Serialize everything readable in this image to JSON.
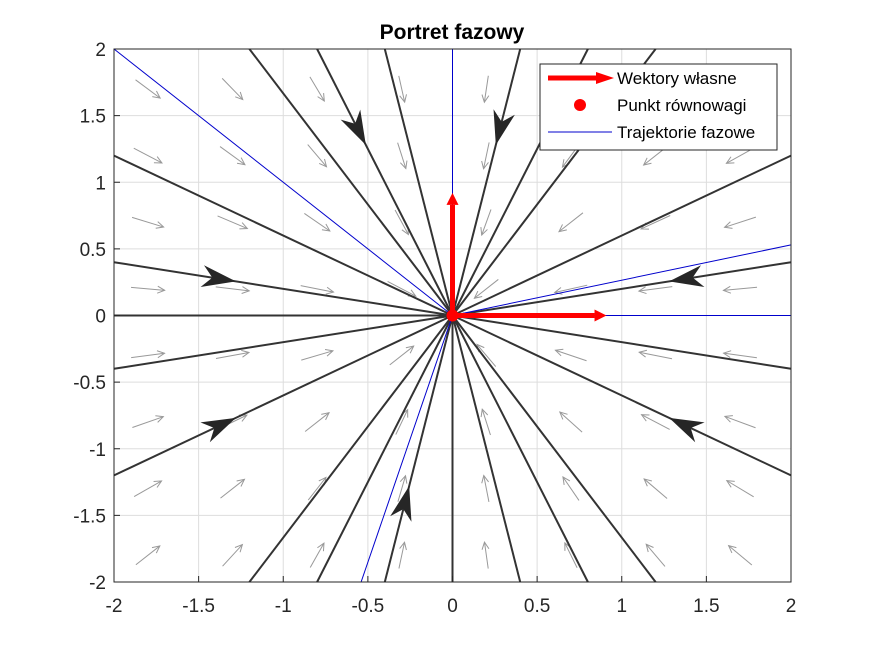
{
  "chart_data": {
    "type": "line",
    "title": "Portret fazowy",
    "xlabel": "",
    "ylabel": "",
    "xlim": [
      -2,
      2
    ],
    "ylim": [
      -2,
      2
    ],
    "xticks": [
      -2,
      -1.5,
      -1,
      -0.5,
      0,
      0.5,
      1,
      1.5,
      2
    ],
    "yticks": [
      -2,
      -1.5,
      -1,
      -0.5,
      0,
      0.5,
      1,
      1.5,
      2
    ],
    "xtick_labels": [
      "-2",
      "-1.5",
      "-1",
      "-0.5",
      "0",
      "0.5",
      "1",
      "1.5",
      "2"
    ],
    "ytick_labels": [
      "-2",
      "-1.5",
      "-1",
      "-0.5",
      "0",
      "0.5",
      "1",
      "1.5",
      "2"
    ],
    "grid": true,
    "legend_position": "top-right",
    "colors": {
      "eigenvector": "#ff0000",
      "equilibrium": "#ff0000",
      "trajectory_highlight": "#0000cc",
      "trajectory": "#333333",
      "quiver": "#999999",
      "grid": "#dddddd"
    },
    "series": [
      {
        "name": "Wektory własne",
        "kind": "eigenvectors",
        "vectors": [
          {
            "from": [
              0,
              0
            ],
            "to": [
              0.91,
              0
            ]
          },
          {
            "from": [
              0,
              0
            ],
            "to": [
              0,
              0.92
            ]
          }
        ]
      },
      {
        "name": "Punkt równowagi",
        "kind": "point",
        "points": [
          [
            0,
            0
          ]
        ]
      },
      {
        "name": "Trajektorie fazowe",
        "kind": "lines",
        "lines": [
          {
            "from": [
              -2,
              2
            ],
            "to": [
              0,
              0
            ]
          },
          {
            "from": [
              -0.54,
              -2
            ],
            "to": [
              0,
              0
            ]
          },
          {
            "from": [
              2,
              0.53
            ],
            "to": [
              0,
              0
            ]
          },
          {
            "from": [
              2,
              0
            ],
            "to": [
              0,
              0
            ]
          },
          {
            "from": [
              0,
              2
            ],
            "to": [
              0,
              0
            ]
          }
        ]
      }
    ],
    "trajectories": [
      {
        "from": [
          -2,
          0.4
        ],
        "to": [
          0,
          0
        ],
        "arrow_at": 0.36
      },
      {
        "from": [
          -2,
          -0.4
        ],
        "to": [
          0,
          0
        ]
      },
      {
        "from": [
          -2,
          1.2
        ],
        "to": [
          0,
          0
        ]
      },
      {
        "from": [
          -2,
          -1.2
        ],
        "to": [
          0,
          0
        ],
        "arrow_at": 0.36
      },
      {
        "from": [
          -1.2,
          2
        ],
        "to": [
          0,
          0
        ]
      },
      {
        "from": [
          -1.2,
          -2
        ],
        "to": [
          0,
          0
        ]
      },
      {
        "from": [
          -0.4,
          2
        ],
        "to": [
          0,
          0
        ]
      },
      {
        "from": [
          -0.4,
          -2
        ],
        "to": [
          0,
          0
        ],
        "arrow_at": 0.36
      },
      {
        "from": [
          0.4,
          2
        ],
        "to": [
          0,
          0
        ],
        "arrow_at": 0.36
      },
      {
        "from": [
          0.4,
          -2
        ],
        "to": [
          0,
          0
        ]
      },
      {
        "from": [
          1.2,
          2
        ],
        "to": [
          0,
          0
        ]
      },
      {
        "from": [
          1.2,
          -2
        ],
        "to": [
          0,
          0
        ]
      },
      {
        "from": [
          2,
          1.2
        ],
        "to": [
          0,
          0
        ]
      },
      {
        "from": [
          2,
          -1.2
        ],
        "to": [
          0,
          0
        ],
        "arrow_at": 0.36
      },
      {
        "from": [
          2,
          0.4
        ],
        "to": [
          0,
          0
        ],
        "arrow_at": 0.36
      },
      {
        "from": [
          2,
          -0.4
        ],
        "to": [
          0,
          0
        ]
      },
      {
        "from": [
          -2,
          0
        ],
        "to": [
          0,
          0
        ]
      },
      {
        "from": [
          0,
          -2
        ],
        "to": [
          0,
          0
        ]
      },
      {
        "from": [
          -0.8,
          2
        ],
        "to": [
          0,
          0
        ],
        "arrow_at": 0.36
      },
      {
        "from": [
          0.8,
          2
        ],
        "to": [
          0,
          0
        ]
      },
      {
        "from": [
          -0.8,
          -2
        ],
        "to": [
          0,
          0
        ]
      },
      {
        "from": [
          0.8,
          -2
        ],
        "to": [
          0,
          0
        ]
      }
    ],
    "vector_field": {
      "x": [
        -1.8,
        -1.3,
        -0.8,
        -0.3,
        0.2,
        0.7,
        1.2,
        1.7
      ],
      "y": [
        -1.8,
        -1.3,
        -0.8,
        -0.3,
        0.2,
        0.7,
        1.2,
        1.7
      ],
      "field": "dx/dt = -x, dy/dt = -y"
    }
  }
}
